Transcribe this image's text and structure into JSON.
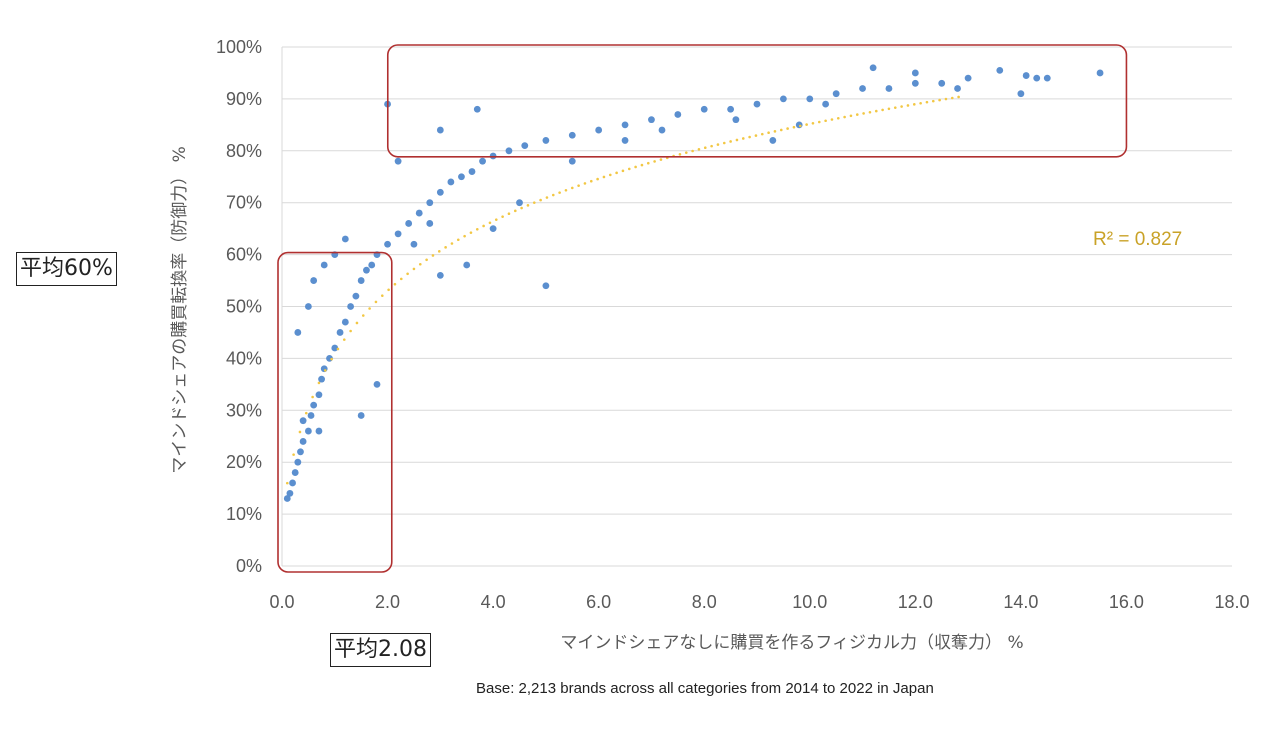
{
  "chart_data": {
    "type": "scatter",
    "title": "",
    "xlabel": "マインドシェアなしに購買を作るフィジカル力（収奪力） %",
    "ylabel": "マインドシェアの購買転換率（防御力） %",
    "xlim": [
      0,
      18
    ],
    "ylim": [
      0,
      100
    ],
    "x_ticks": [
      "0.0",
      "2.0",
      "4.0",
      "6.0",
      "8.0",
      "10.0",
      "12.0",
      "14.0",
      "16.0",
      "18.0"
    ],
    "y_ticks": [
      "0%",
      "10%",
      "20%",
      "30%",
      "40%",
      "50%",
      "60%",
      "70%",
      "80%",
      "90%",
      "100%"
    ],
    "grid": "horizontal",
    "point_color": "#5b8fcf",
    "trendline_color": "#f2c744",
    "highlight_box_color": "#b03030",
    "r2_label": "R² = 0.827",
    "highlight_regions": [
      {
        "x_range": [
          0.0,
          2.08
        ],
        "y_range": [
          0,
          60
        ]
      },
      {
        "x_range": [
          2.08,
          16.0
        ],
        "y_range": [
          80,
          100
        ]
      }
    ],
    "series": [
      {
        "points": [
          [
            0.1,
            13
          ],
          [
            0.15,
            14
          ],
          [
            0.2,
            16
          ],
          [
            0.25,
            18
          ],
          [
            0.3,
            20
          ],
          [
            0.35,
            22
          ],
          [
            0.4,
            24
          ],
          [
            0.5,
            26
          ],
          [
            0.55,
            29
          ],
          [
            0.6,
            31
          ],
          [
            0.7,
            33
          ],
          [
            0.75,
            36
          ],
          [
            0.8,
            38
          ],
          [
            0.9,
            40
          ],
          [
            1.0,
            42
          ],
          [
            1.1,
            45
          ],
          [
            1.2,
            47
          ],
          [
            1.3,
            50
          ],
          [
            1.4,
            52
          ],
          [
            1.5,
            55
          ],
          [
            1.6,
            57
          ],
          [
            1.7,
            58
          ],
          [
            1.8,
            60
          ],
          [
            2.0,
            62
          ],
          [
            2.2,
            64
          ],
          [
            2.4,
            66
          ],
          [
            2.6,
            68
          ],
          [
            2.8,
            70
          ],
          [
            3.0,
            72
          ],
          [
            3.2,
            74
          ],
          [
            3.4,
            75
          ],
          [
            3.6,
            76
          ],
          [
            3.8,
            78
          ],
          [
            4.0,
            79
          ],
          [
            4.3,
            80
          ],
          [
            4.6,
            81
          ],
          [
            5.0,
            82
          ],
          [
            5.5,
            83
          ],
          [
            6.0,
            84
          ],
          [
            6.5,
            85
          ],
          [
            7.0,
            86
          ],
          [
            7.5,
            87
          ],
          [
            8.0,
            88
          ],
          [
            8.5,
            88
          ],
          [
            9.0,
            89
          ],
          [
            9.5,
            90
          ],
          [
            10.0,
            90
          ],
          [
            10.5,
            91
          ],
          [
            11.0,
            92
          ],
          [
            11.5,
            92
          ],
          [
            12.0,
            93
          ],
          [
            12.5,
            93
          ],
          [
            13.0,
            94
          ],
          [
            13.6,
            95.5
          ],
          [
            14.0,
            91
          ],
          [
            14.1,
            94.5
          ],
          [
            14.3,
            94
          ],
          [
            14.5,
            94
          ],
          [
            15.5,
            95
          ],
          [
            5.0,
            54
          ],
          [
            0.3,
            45
          ],
          [
            0.5,
            50
          ],
          [
            0.6,
            55
          ],
          [
            0.8,
            58
          ],
          [
            1.0,
            60
          ],
          [
            1.2,
            63
          ],
          [
            0.4,
            28
          ],
          [
            0.7,
            26
          ],
          [
            1.5,
            29
          ],
          [
            1.8,
            35
          ],
          [
            2.5,
            62
          ],
          [
            3.0,
            56
          ],
          [
            3.5,
            58
          ],
          [
            2.2,
            78
          ],
          [
            3.7,
            88
          ],
          [
            4.5,
            70
          ],
          [
            3.0,
            84
          ],
          [
            2.0,
            89
          ],
          [
            11.2,
            96
          ],
          [
            8.6,
            86
          ],
          [
            9.3,
            82
          ],
          [
            9.8,
            85
          ],
          [
            10.3,
            89
          ],
          [
            12.0,
            95
          ],
          [
            12.8,
            92
          ],
          [
            6.5,
            82
          ],
          [
            7.2,
            84
          ],
          [
            5.5,
            78
          ],
          [
            4.0,
            65
          ],
          [
            2.8,
            66
          ]
        ]
      }
    ]
  },
  "callouts": {
    "avg_y": "平均60%",
    "avg_x": "平均2.08"
  },
  "footer": {
    "base_note": "Base: 2,213 brands across all categories from 2014 to 2022 in Japan"
  }
}
